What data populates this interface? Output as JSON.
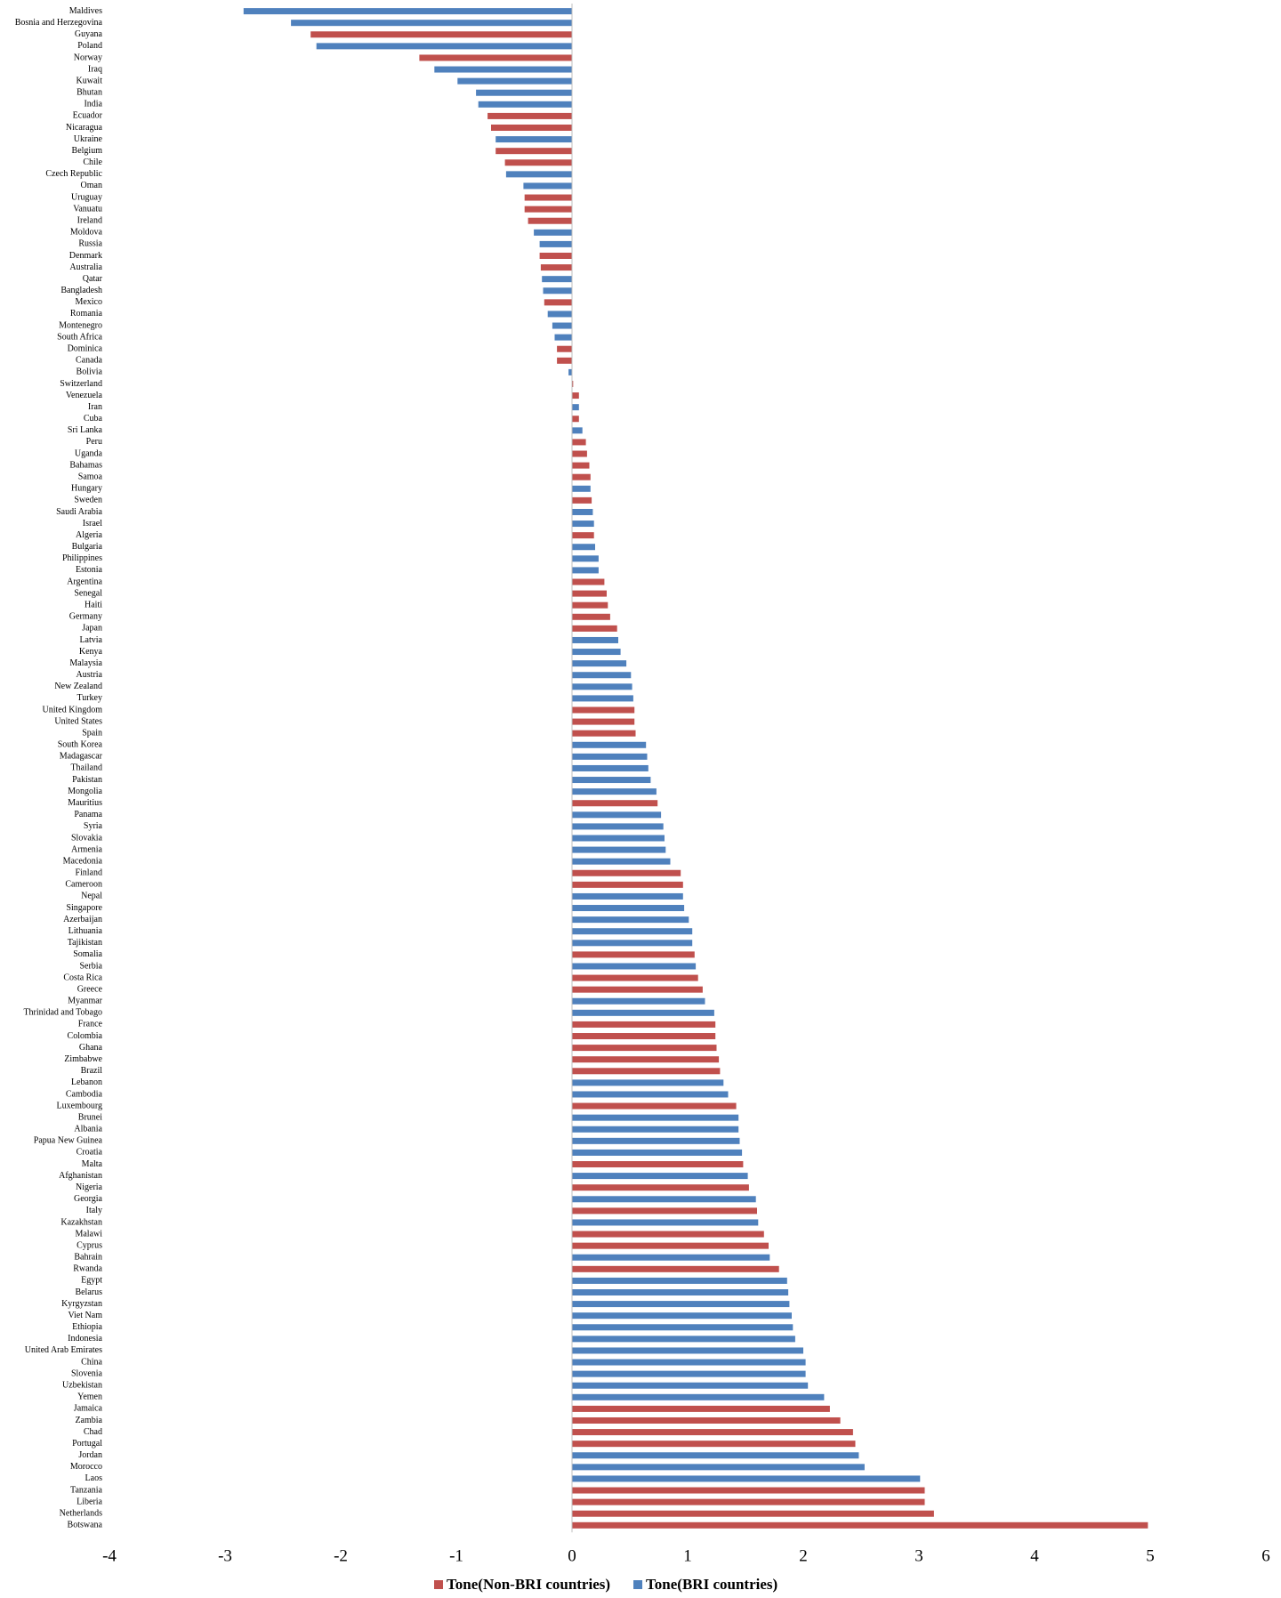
{
  "chart_data": {
    "type": "barh",
    "categories": [
      "Maldives",
      "Bosnia and Herzegovina",
      "Guyana",
      "Poland",
      "Norway",
      "Iraq",
      "Kuwait",
      "Bhutan",
      "India",
      "Ecuador",
      "Nicaragua",
      "Ukraine",
      "Belgium",
      "Chile",
      "Czech Republic",
      "Oman",
      "Uruguay",
      "Vanuatu",
      "Ireland",
      "Moldova",
      "Russia",
      "Denmark",
      "Australia",
      "Qatar",
      "Bangladesh",
      "Mexico",
      "Romania",
      "Montenegro",
      "South Africa",
      "Dominica",
      "Canada",
      "Bolivia",
      "Switzerland",
      "Venezuela",
      "Iran",
      "Cuba",
      "Sri Lanka",
      "Peru",
      "Uganda",
      "Bahamas",
      "Samoa",
      "Hungary",
      "Sweden",
      "Saudi Arabia",
      "Israel",
      "Algeria",
      "Bulgaria",
      "Philippines",
      "Estonia",
      "Argentina",
      "Senegal",
      "Haiti",
      "Germany",
      "Japan",
      "Latvia",
      "Kenya",
      "Malaysia",
      "Austria",
      "New Zealand",
      "Turkey",
      "United Kingdom",
      "United States",
      "Spain",
      "South Korea",
      "Madagascar",
      "Thailand",
      "Pakistan",
      "Mongolia",
      "Mauritius",
      "Panama",
      "Syria",
      "Slovakia",
      "Armenia",
      "Macedonia",
      "Finland",
      "Cameroon",
      "Nepal",
      "Singapore",
      "Azerbaijan",
      "Lithuania",
      "Tajikistan",
      "Somalia",
      "Serbia",
      "Costa Rica",
      "Greece",
      "Myanmar",
      "Thrinidad and Tobago",
      "France",
      "Colombia",
      "Ghana",
      "Zimbabwe",
      "Brazil",
      "Lebanon",
      "Cambodia",
      "Luxembourg",
      "Brunei",
      "Albania",
      "Papua New Guinea",
      "Croatia",
      "Malta",
      "Afghanistan",
      "Nigeria",
      "Georgia",
      "Italy",
      "Kazakhstan",
      "Malawi",
      "Cyprus",
      "Bahrain",
      "Rwanda",
      "Egypt",
      "Belarus",
      "Kyrgyzstan",
      "Viet Nam",
      "Ethiopia",
      "Indonesia",
      "United Arab Emirates",
      "China",
      "Slovenia",
      "Uzbekistan",
      "Yemen",
      "Jamaica",
      "Zambia",
      "Chad",
      "Portugal",
      "Jordan",
      "Morocco",
      "Laos",
      "Tanzania",
      "Liberia",
      "Netherlands",
      "Botswana"
    ],
    "series": [
      {
        "name": "Tone(Non-BRI countries)",
        "color": "#c0504d",
        "values": [
          null,
          null,
          -2.26,
          null,
          -1.32,
          null,
          null,
          null,
          null,
          -0.73,
          -0.7,
          null,
          -0.66,
          -0.58,
          null,
          null,
          -0.41,
          -0.41,
          -0.38,
          null,
          null,
          -0.28,
          -0.27,
          null,
          null,
          -0.24,
          null,
          null,
          null,
          -0.13,
          -0.13,
          null,
          0.01,
          0.06,
          null,
          0.06,
          null,
          0.12,
          0.13,
          0.15,
          0.16,
          null,
          0.17,
          null,
          null,
          0.19,
          null,
          null,
          null,
          0.28,
          0.3,
          0.31,
          0.33,
          0.39,
          null,
          null,
          null,
          null,
          null,
          null,
          0.54,
          0.54,
          0.55,
          null,
          null,
          null,
          null,
          null,
          0.74,
          null,
          null,
          null,
          null,
          null,
          0.94,
          0.96,
          null,
          null,
          null,
          null,
          null,
          1.06,
          null,
          1.09,
          1.13,
          null,
          null,
          1.24,
          1.24,
          1.25,
          1.27,
          1.28,
          null,
          null,
          1.42,
          null,
          null,
          null,
          null,
          1.48,
          null,
          1.53,
          null,
          1.6,
          null,
          1.66,
          1.7,
          null,
          1.79,
          null,
          null,
          null,
          null,
          null,
          null,
          null,
          null,
          null,
          null,
          null,
          2.23,
          2.32,
          2.43,
          2.45,
          null,
          null,
          null,
          3.05,
          3.05,
          3.13,
          4.98
        ]
      },
      {
        "name": "Tone(BRI countries)",
        "color": "#4f81bd",
        "values": [
          -2.84,
          -2.43,
          null,
          -2.21,
          null,
          -1.19,
          -0.99,
          -0.83,
          -0.81,
          null,
          null,
          -0.66,
          null,
          null,
          -0.57,
          -0.42,
          null,
          null,
          null,
          -0.33,
          -0.28,
          null,
          null,
          -0.26,
          -0.25,
          null,
          -0.21,
          -0.17,
          -0.15,
          null,
          null,
          -0.03,
          null,
          null,
          0.06,
          null,
          0.09,
          null,
          null,
          null,
          null,
          0.16,
          null,
          0.18,
          0.19,
          null,
          0.2,
          0.23,
          0.23,
          null,
          null,
          null,
          null,
          null,
          0.4,
          0.42,
          0.47,
          0.51,
          0.52,
          0.53,
          null,
          null,
          null,
          0.64,
          0.65,
          0.66,
          0.68,
          0.73,
          null,
          0.77,
          0.79,
          0.8,
          0.81,
          0.85,
          null,
          null,
          0.96,
          0.97,
          1.01,
          1.04,
          1.04,
          null,
          1.07,
          null,
          null,
          1.15,
          1.23,
          null,
          null,
          null,
          null,
          null,
          1.31,
          1.35,
          null,
          1.44,
          1.44,
          1.45,
          1.47,
          null,
          1.52,
          null,
          1.59,
          null,
          1.61,
          null,
          null,
          1.71,
          null,
          1.86,
          1.87,
          1.88,
          1.9,
          1.91,
          1.93,
          2.0,
          2.02,
          2.02,
          2.04,
          2.18,
          null,
          null,
          null,
          null,
          2.48,
          2.53,
          3.01,
          null,
          null,
          null,
          null
        ]
      }
    ],
    "xlim": [
      -4,
      6
    ],
    "xticks": [
      -4,
      -3,
      -2,
      -1,
      0,
      1,
      2,
      3,
      4,
      5,
      6
    ],
    "grid": false,
    "legend": "bottom"
  }
}
